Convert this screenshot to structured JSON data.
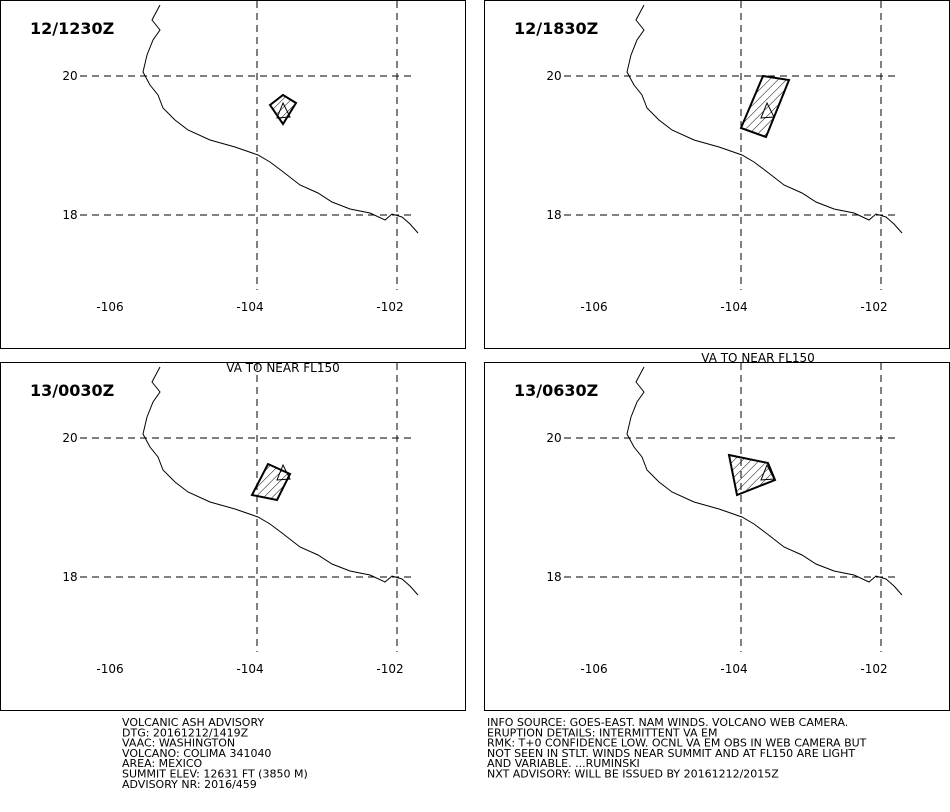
{
  "panels": [
    {
      "time": "12/1230Z",
      "lat_labels": [
        "20",
        "18"
      ],
      "lon_labels": [
        "-106",
        "-104",
        "-102"
      ],
      "note": "VA TO NEAR FL150"
    },
    {
      "time": "12/1830Z",
      "lat_labels": [
        "20",
        "18"
      ],
      "lon_labels": [
        "-106",
        "-104",
        "-102"
      ],
      "note": "VA TO NEAR FL150"
    },
    {
      "time": "13/0030Z",
      "lat_labels": [
        "20",
        "18"
      ],
      "lon_labels": [
        "-106",
        "-104",
        "-102"
      ]
    },
    {
      "time": "13/0630Z",
      "lat_labels": [
        "20",
        "18"
      ],
      "lon_labels": [
        "-106",
        "-104",
        "-102"
      ]
    }
  ],
  "advisory_left": [
    "VOLCANIC ASH ADVISORY",
    "DTG: 20161212/1419Z",
    "VAAC: WASHINGTON",
    "VOLCANO: COLIMA 341040",
    "AREA: MEXICO",
    "SUMMIT ELEV: 12631 FT (3850 M)",
    "ADVISORY NR: 2016/459"
  ],
  "advisory_right": [
    "INFO SOURCE: GOES-EAST. NAM WINDS. VOLCANO WEB CAMERA.",
    "ERUPTION DETAILS: INTERMITTENT VA EM",
    "RMK: T+0 CONFIDENCE LOW. OCNL VA EM OBS IN WEB CAMERA BUT",
    "NOT SEEN IN STLT. WINDS NEAR SUMMIT AND AT FL150 ARE LIGHT",
    "AND VARIABLE. ...RUMINSKI",
    "NXT ADVISORY: WILL BE ISSUED BY 20161212/2015Z"
  ]
}
